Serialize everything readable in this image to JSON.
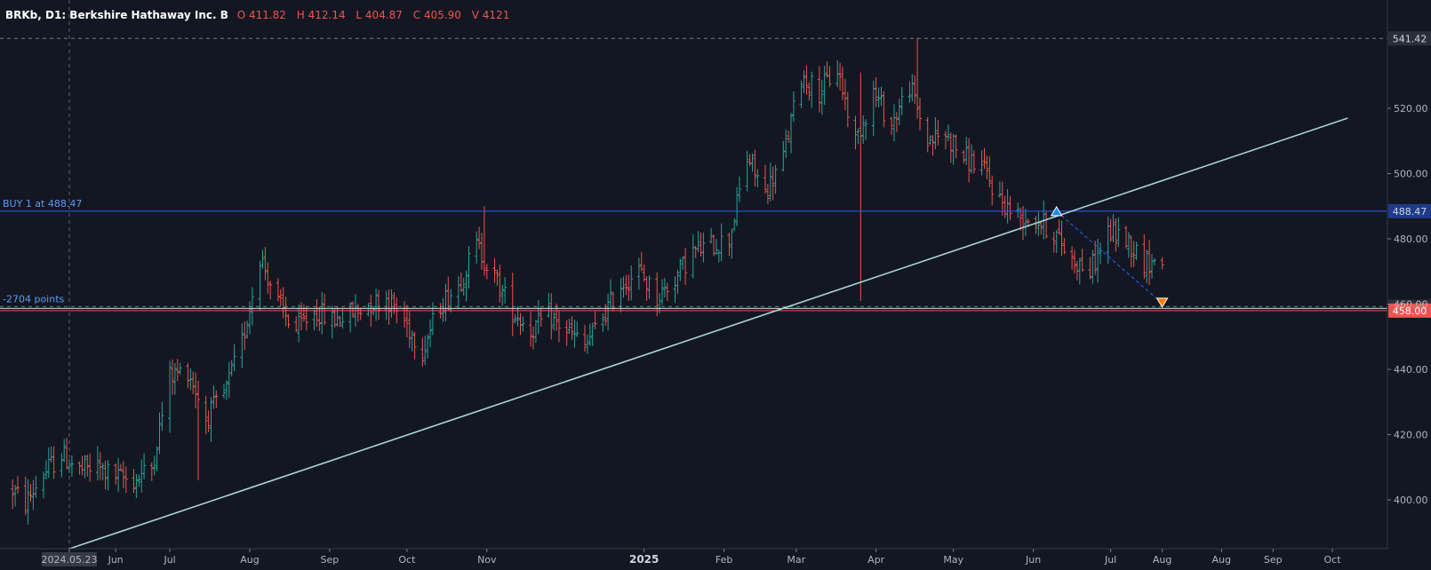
{
  "header": {
    "symbol": "BRKb, D1: Berkshire Hathaway Inc. B",
    "open": "O 411.82",
    "high": "H 412.14",
    "low": "L 404.87",
    "close": "C 405.90",
    "volume": "V 4121"
  },
  "colors": {
    "background": "#131722",
    "up": "#26a69a",
    "down": "#ef5350",
    "trendline": "#a8d3d6",
    "buy_line": "#2962ff",
    "support_line": "#ef5350",
    "axis_text": "#b2b5be"
  },
  "chart_data": {
    "type": "ohlc",
    "instrument": "BRKb",
    "timeframe": "D1",
    "y_axis": {
      "ticks": [
        {
          "value": 400,
          "label": "400.00"
        },
        {
          "value": 420,
          "label": "420.00"
        },
        {
          "value": 440,
          "label": "440.00"
        },
        {
          "value": 460,
          "label": "460.00"
        },
        {
          "value": 480,
          "label": "480.00"
        },
        {
          "value": 500,
          "label": "500.00"
        },
        {
          "value": 520,
          "label": "520.00"
        }
      ],
      "range": [
        385,
        551
      ]
    },
    "x_axis": {
      "ticks": [
        {
          "date": "2024-05-23",
          "label": "2024.05.23",
          "highlight": true
        },
        {
          "date": "2024-06-10",
          "label": "Jun"
        },
        {
          "date": "2024-07-01",
          "label": "Jul"
        },
        {
          "date": "2024-08-01",
          "label": "Aug"
        },
        {
          "date": "2024-09-01",
          "label": "Sep"
        },
        {
          "date": "2024-10-01",
          "label": "Oct"
        },
        {
          "date": "2024-11-01",
          "label": "Nov"
        },
        {
          "date": "2025-01-01",
          "label": "2025",
          "year": true
        },
        {
          "date": "2025-02-01",
          "label": "Feb"
        },
        {
          "date": "2025-03-01",
          "label": "Mar"
        },
        {
          "date": "2025-04-01",
          "label": "Apr"
        },
        {
          "date": "2025-05-01",
          "label": "May"
        },
        {
          "date": "2025-06-01",
          "label": "Jun"
        },
        {
          "date": "2025-07-01",
          "label": "Jul"
        },
        {
          "date": "2025-07-21",
          "label": "Aug"
        },
        {
          "date": "2025-08-13",
          "label": "Aug"
        },
        {
          "date": "2025-09-02",
          "label": "Sep"
        },
        {
          "date": "2025-09-25",
          "label": "Oct"
        }
      ]
    },
    "series_path": [
      [
        "2024-05-01",
        403
      ],
      [
        "2024-05-06",
        399
      ],
      [
        "2024-05-13",
        408
      ],
      [
        "2024-05-20",
        414
      ],
      [
        "2024-05-27",
        409
      ],
      [
        "2024-06-03",
        410
      ],
      [
        "2024-06-10",
        407
      ],
      [
        "2024-06-17",
        406
      ],
      [
        "2024-06-24",
        410
      ],
      [
        "2024-07-01",
        438
      ],
      [
        "2024-07-08",
        440
      ],
      [
        "2024-07-15",
        425
      ],
      [
        "2024-07-22",
        432
      ],
      [
        "2024-07-29",
        448
      ],
      [
        "2024-08-05",
        475
      ],
      [
        "2024-08-12",
        460
      ],
      [
        "2024-08-19",
        452
      ],
      [
        "2024-08-26",
        458
      ],
      [
        "2024-09-02",
        455
      ],
      [
        "2024-09-09",
        457
      ],
      [
        "2024-09-16",
        460
      ],
      [
        "2024-09-23",
        462
      ],
      [
        "2024-09-30",
        455
      ],
      [
        "2024-10-07",
        446
      ],
      [
        "2024-10-14",
        460
      ],
      [
        "2024-10-21",
        466
      ],
      [
        "2024-10-28",
        478
      ],
      [
        "2024-11-04",
        468
      ],
      [
        "2024-11-11",
        458
      ],
      [
        "2024-11-18",
        452
      ],
      [
        "2024-11-25",
        456
      ],
      [
        "2024-12-02",
        452
      ],
      [
        "2024-12-09",
        447
      ],
      [
        "2024-12-16",
        456
      ],
      [
        "2024-12-23",
        466
      ],
      [
        "2024-12-30",
        470
      ],
      [
        "2025-01-06",
        462
      ],
      [
        "2025-01-13",
        468
      ],
      [
        "2025-01-20",
        476
      ],
      [
        "2025-01-27",
        478
      ],
      [
        "2025-02-03",
        480
      ],
      [
        "2025-02-10",
        505
      ],
      [
        "2025-02-17",
        494
      ],
      [
        "2025-02-24",
        505
      ],
      [
        "2025-03-03",
        530
      ],
      [
        "2025-03-10",
        525
      ],
      [
        "2025-03-17",
        532
      ],
      [
        "2025-03-24",
        510
      ],
      [
        "2025-03-31",
        525
      ],
      [
        "2025-04-07",
        515
      ],
      [
        "2025-04-14",
        527
      ],
      [
        "2025-04-21",
        510
      ],
      [
        "2025-04-28",
        512
      ],
      [
        "2025-05-05",
        505
      ],
      [
        "2025-05-12",
        502
      ],
      [
        "2025-05-19",
        492
      ],
      [
        "2025-05-26",
        487
      ],
      [
        "2025-06-02",
        486
      ],
      [
        "2025-06-09",
        482
      ],
      [
        "2025-06-16",
        474
      ],
      [
        "2025-06-23",
        470
      ],
      [
        "2025-06-30",
        482
      ],
      [
        "2025-07-07",
        480
      ],
      [
        "2025-07-14",
        473
      ]
    ],
    "events": [
      {
        "date": "2024-07-12",
        "low": 406
      },
      {
        "date": "2024-10-31",
        "high": 490
      },
      {
        "date": "2025-03-26",
        "low": 461,
        "high": 531
      },
      {
        "date": "2025-04-17",
        "high": 541.42
      }
    ],
    "trendline": {
      "from": [
        "2024-05-23",
        385
      ],
      "to": [
        "2025-10-01",
        517
      ]
    },
    "levels": [
      {
        "value": 541.42,
        "label": "541.42",
        "style": "dashed-gray"
      },
      {
        "value": 488.47,
        "label": "488.47",
        "style": "solid-blue"
      },
      {
        "value": 459.21,
        "label": "459.21",
        "style": "dashed-gray"
      },
      {
        "value": 458.0,
        "label": "458.00",
        "style": "solid-red"
      }
    ],
    "annotations": {
      "buy_label": "BUY 1 at 488.47",
      "points_label": "-2704 points",
      "trade": {
        "entry": [
          "2025-06-10",
          488.47
        ],
        "exit": [
          "2025-07-21",
          458.0
        ]
      }
    },
    "crosshair_date": "2024-05-23"
  }
}
